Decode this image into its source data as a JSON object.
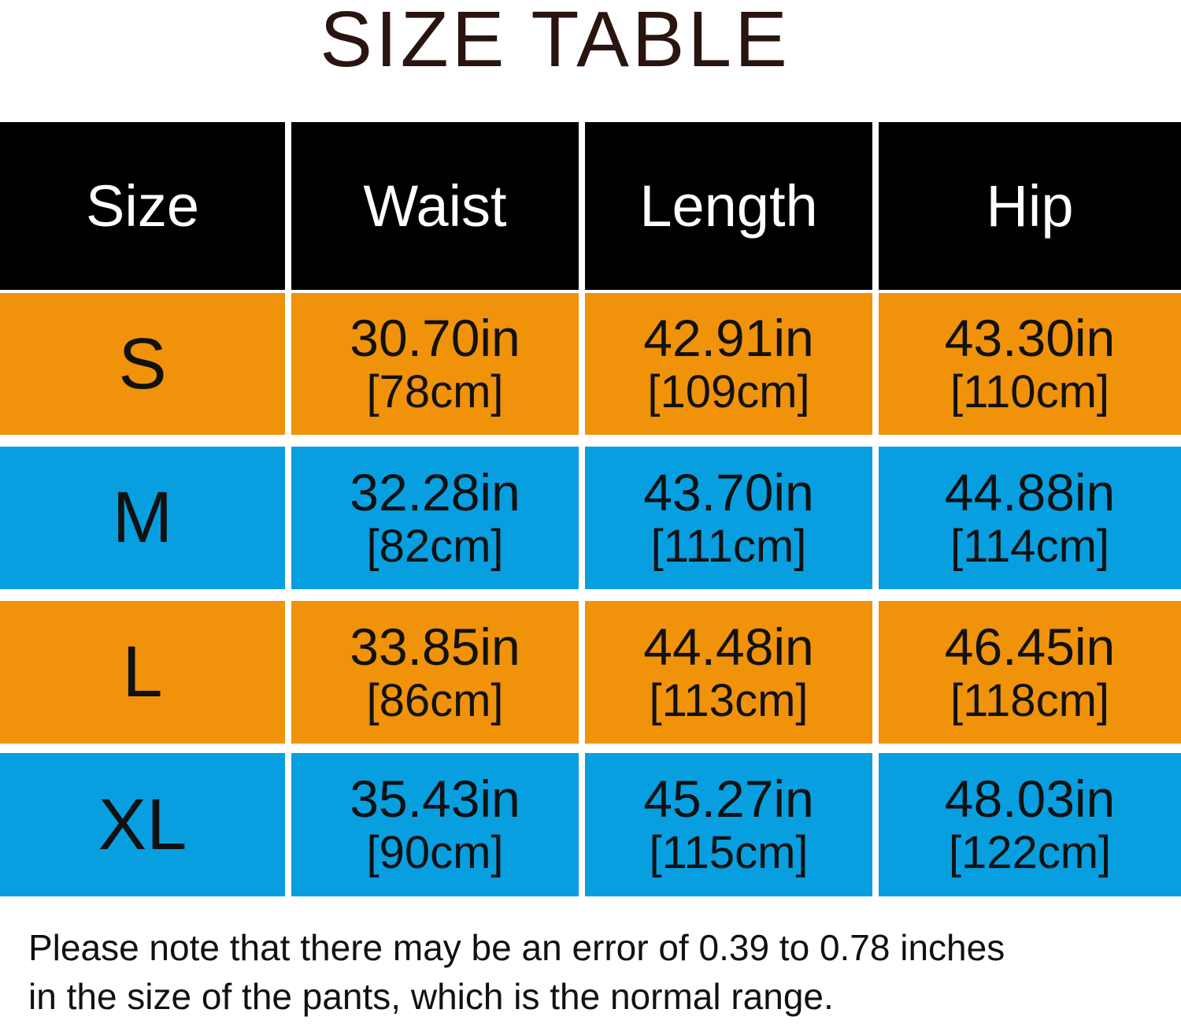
{
  "title": "SIZE TABLE",
  "table": {
    "header": [
      "Size",
      "Waist",
      "Length",
      "Hip"
    ],
    "rows": [
      {
        "size": "S",
        "cells": [
          {
            "in": "30.70in",
            "cm": "[78cm]"
          },
          {
            "in": "42.91in",
            "cm": "[109cm]"
          },
          {
            "in": "43.30in",
            "cm": "[110cm]"
          }
        ]
      },
      {
        "size": "M",
        "cells": [
          {
            "in": "32.28in",
            "cm": "[82cm]"
          },
          {
            "in": "43.70in",
            "cm": "[111cm]"
          },
          {
            "in": "44.88in",
            "cm": "[114cm]"
          }
        ]
      },
      {
        "size": "L",
        "cells": [
          {
            "in": "33.85in",
            "cm": "[86cm]"
          },
          {
            "in": "44.48in",
            "cm": "[113cm]"
          },
          {
            "in": "46.45in",
            "cm": "[118cm]"
          }
        ]
      },
      {
        "size": "XL",
        "cells": [
          {
            "in": "35.43in",
            "cm": "[90cm]"
          },
          {
            "in": "45.27in",
            "cm": "[115cm]"
          },
          {
            "in": "48.03in",
            "cm": "[122cm]"
          }
        ]
      }
    ]
  },
  "note": {
    "lines": [
      "Please note that there may be an error of 0.39 to 0.78 inches",
      "in the size of the pants, which is the normal range."
    ]
  }
}
